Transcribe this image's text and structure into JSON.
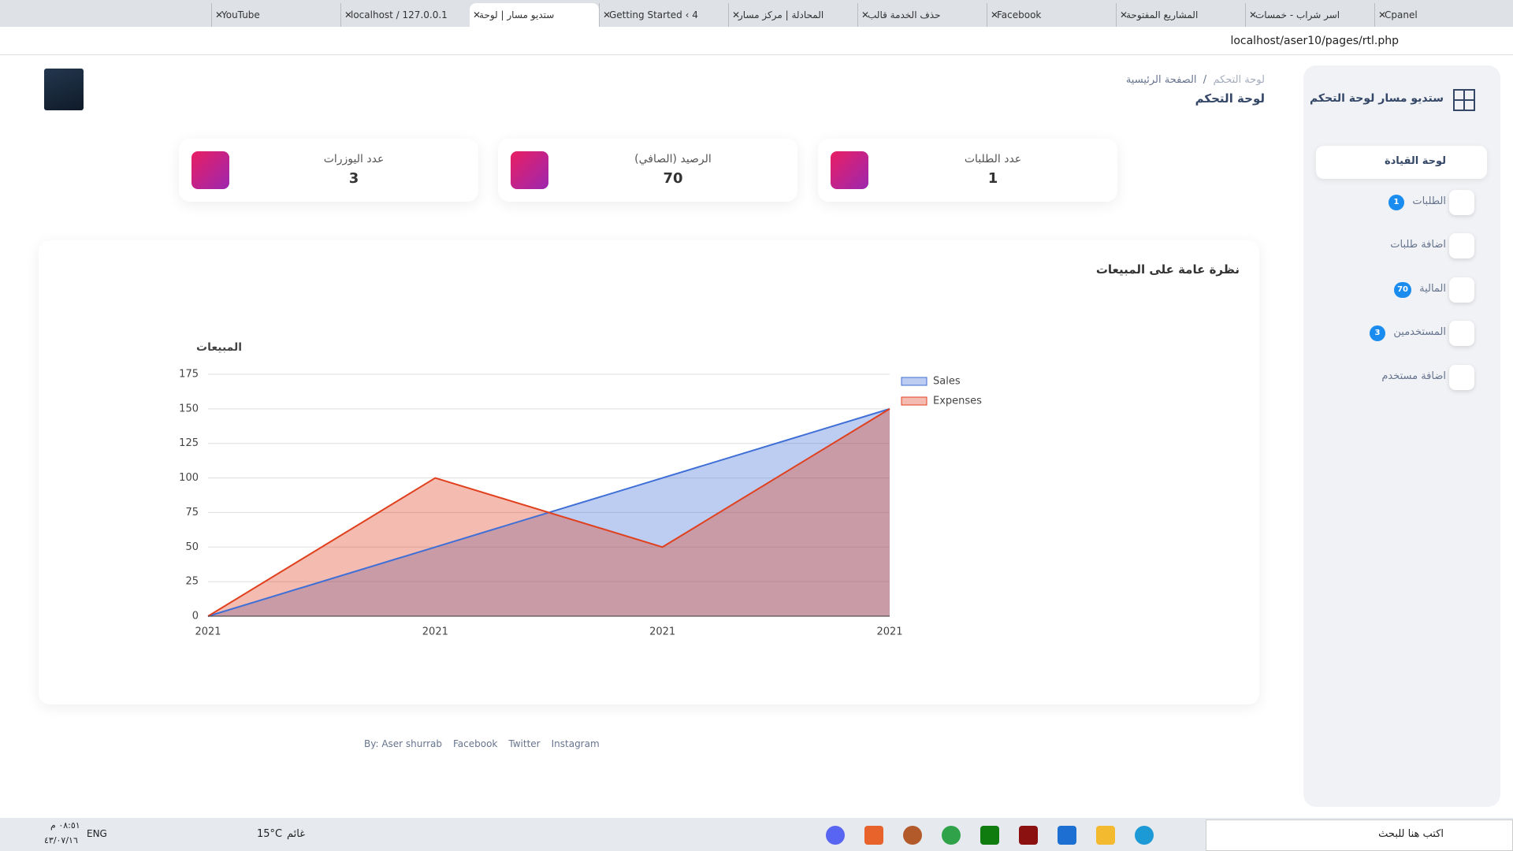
{
  "browser": {
    "tabs": [
      "YouTube",
      "localhost / 127.0.0.1",
      "ستديو مسار | لوحة",
      "Getting Started ‹ 4",
      "المحادلة | مركز مسار",
      "حذف الخدمة قالب",
      "Facebook",
      "المشاريع المفتوحة",
      "اسر شراب - خمسات",
      "Cpanel"
    ],
    "address": "localhost/aser10/pages/rtl.php"
  },
  "sidebar": {
    "brand": "ستديو مسار لوحة التحكم",
    "menu": [
      {
        "label": "لوحة القيادة"
      },
      {
        "label": "الطلبات",
        "badge": 1
      },
      {
        "label": "اضافة طلبات"
      },
      {
        "label": "المالية",
        "badge": 70
      },
      {
        "label": "المستخدمين",
        "badge": 3
      },
      {
        "label": "اضافة مستخدم"
      }
    ]
  },
  "header": {
    "breadcrumb": [
      "لوحة التحكم",
      "الصفحة الرئيسية"
    ],
    "title": "لوحة التحكم"
  },
  "stats": [
    {
      "label": "عدد الطلبات",
      "value": 1
    },
    {
      "label": "الرصيد (الصافي)",
      "value": 70
    },
    {
      "label": "عدد اليوزرات",
      "value": 3
    }
  ],
  "chart_card": {
    "title": "نظرة عامة على المبيعات"
  },
  "chart_data": {
    "type": "area",
    "y_label": "المبيعات",
    "categories": [
      "2021",
      "2021",
      "2021",
      "2021"
    ],
    "series": [
      {
        "name": "Sales",
        "color": "#3f6fd6",
        "values": [
          0,
          50,
          100,
          150
        ]
      },
      {
        "name": "Expenses",
        "color": "#e0401e",
        "values": [
          0,
          100,
          50,
          150
        ]
      }
    ],
    "ylim": [
      0,
      175
    ],
    "yticks": [
      0,
      25,
      50,
      75,
      100,
      125,
      150,
      175
    ],
    "grid": true,
    "legend": "right"
  },
  "footer": {
    "by": "By: Aser shurrab",
    "links": [
      "Facebook",
      "Twitter",
      "Instagram"
    ]
  },
  "taskbar": {
    "search": "اكتب هنا للبحث",
    "weather_temp": "15°C",
    "weather_text": "غائم",
    "language": "ENG",
    "time": "٠٨:٥١ م",
    "date": "٤٣/٠٧/١٦"
  }
}
